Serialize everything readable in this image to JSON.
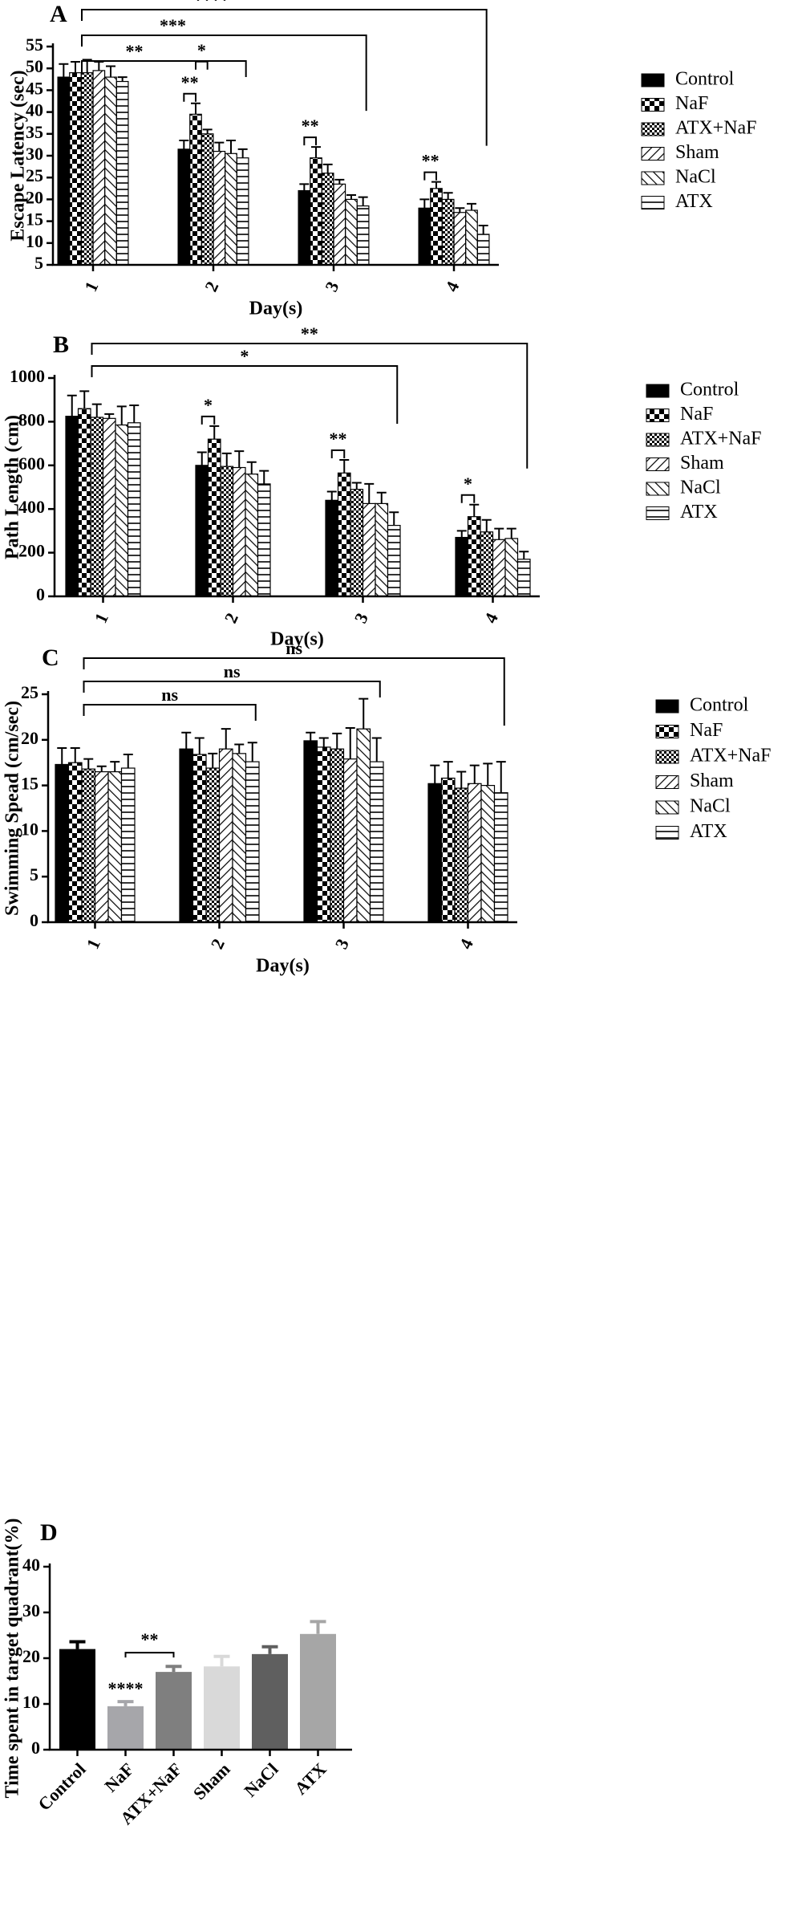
{
  "chart_data": [
    {
      "id": "A",
      "type": "bar",
      "panel_letter": "A",
      "xlabel": "Day(s)",
      "ylabel": "Escape Latency (sec)",
      "ylim": [
        5,
        55
      ],
      "yticks": [
        5,
        10,
        15,
        20,
        25,
        30,
        35,
        40,
        45,
        50,
        55
      ],
      "categories": [
        "1",
        "2",
        "3",
        "4"
      ],
      "legend_position": "right",
      "series": [
        {
          "name": "Control",
          "pattern": "solid",
          "values": [
            48,
            31.5,
            22,
            18
          ],
          "errors": [
            3,
            2,
            1.5,
            2
          ]
        },
        {
          "name": "NaF",
          "pattern": "checker",
          "values": [
            49,
            39.5,
            29.5,
            22.5
          ],
          "errors": [
            2.5,
            2.5,
            2.5,
            1.5
          ]
        },
        {
          "name": "ATX+NaF",
          "pattern": "finecheck",
          "values": [
            49,
            35,
            26,
            20
          ],
          "errors": [
            3,
            1,
            2,
            1.5
          ]
        },
        {
          "name": "Sham",
          "pattern": "diagback",
          "values": [
            49.5,
            31,
            23.5,
            17
          ],
          "errors": [
            2,
            2,
            1,
            1
          ]
        },
        {
          "name": "NaCl",
          "pattern": "diagfwd",
          "values": [
            48,
            30.5,
            20,
            17.5
          ],
          "errors": [
            2.5,
            3,
            1,
            1.5
          ]
        },
        {
          "name": "ATX",
          "pattern": "hlines",
          "values": [
            47,
            29.5,
            18.5,
            12
          ],
          "errors": [
            1,
            2,
            2,
            2
          ]
        }
      ],
      "group_brackets": [
        {
          "from": "1",
          "to": "2",
          "label": "**"
        },
        {
          "from": "1",
          "to": "3",
          "label": "***"
        },
        {
          "from": "1",
          "to": "4",
          "label": "****"
        }
      ],
      "pair_brackets": [
        {
          "category": "2",
          "a": "Control",
          "b": "NaF",
          "label": "**"
        },
        {
          "category": "2",
          "a": "NaF",
          "b": "ATX+NaF",
          "label": "*"
        },
        {
          "category": "3",
          "a": "Control",
          "b": "NaF",
          "label": "**"
        },
        {
          "category": "4",
          "a": "Control",
          "b": "NaF",
          "label": "**"
        }
      ]
    },
    {
      "id": "B",
      "type": "bar",
      "panel_letter": "B",
      "xlabel": "Day(s)",
      "ylabel": "Path Length (cm)",
      "ylim": [
        0,
        1000
      ],
      "yticks": [
        0,
        200,
        400,
        600,
        800,
        1000
      ],
      "categories": [
        "1",
        "2",
        "3",
        "4"
      ],
      "legend_position": "right",
      "series": [
        {
          "name": "Control",
          "pattern": "solid",
          "values": [
            825,
            600,
            440,
            270
          ],
          "errors": [
            95,
            60,
            40,
            30
          ]
        },
        {
          "name": "NaF",
          "pattern": "checker",
          "values": [
            860,
            720,
            565,
            365
          ],
          "errors": [
            80,
            60,
            60,
            55
          ]
        },
        {
          "name": "ATX+NaF",
          "pattern": "finecheck",
          "values": [
            820,
            595,
            490,
            295
          ],
          "errors": [
            60,
            60,
            30,
            55
          ]
        },
        {
          "name": "Sham",
          "pattern": "diagback",
          "values": [
            815,
            590,
            425,
            260
          ],
          "errors": [
            20,
            75,
            90,
            50
          ]
        },
        {
          "name": "NaCl",
          "pattern": "diagfwd",
          "values": [
            785,
            560,
            425,
            265
          ],
          "errors": [
            85,
            55,
            50,
            45
          ]
        },
        {
          "name": "ATX",
          "pattern": "hlines",
          "values": [
            795,
            515,
            325,
            170
          ],
          "errors": [
            80,
            60,
            60,
            35
          ]
        }
      ],
      "group_brackets": [
        {
          "from": "1",
          "to": "3",
          "label": "*"
        },
        {
          "from": "1",
          "to": "4",
          "label": "**"
        }
      ],
      "pair_brackets": [
        {
          "category": "2",
          "a": "Control",
          "b": "NaF",
          "label": "*"
        },
        {
          "category": "3",
          "a": "Control",
          "b": "NaF",
          "label": "**"
        },
        {
          "category": "4",
          "a": "Control",
          "b": "NaF",
          "label": "*"
        }
      ]
    },
    {
      "id": "C",
      "type": "bar",
      "panel_letter": "C",
      "xlabel": "Day(s)",
      "ylabel": "Swimming Spead (cm/sec)",
      "ylim": [
        0,
        25
      ],
      "yticks": [
        0,
        5,
        10,
        15,
        20,
        25
      ],
      "categories": [
        "1",
        "2",
        "3",
        "4"
      ],
      "legend_position": "right",
      "series": [
        {
          "name": "Control",
          "pattern": "solid",
          "values": [
            17.3,
            19,
            19.9,
            15.2
          ],
          "errors": [
            1.8,
            1.8,
            0.9,
            2
          ]
        },
        {
          "name": "NaF",
          "pattern": "checker",
          "values": [
            17.5,
            18.4,
            19.2,
            15.8
          ],
          "errors": [
            1.6,
            1.8,
            1,
            1.8
          ]
        },
        {
          "name": "ATX+NaF",
          "pattern": "finecheck",
          "values": [
            16.8,
            16.9,
            19,
            14.7
          ],
          "errors": [
            1.1,
            1.6,
            1.7,
            1.8
          ]
        },
        {
          "name": "Sham",
          "pattern": "diagback",
          "values": [
            16.5,
            19,
            17.9,
            15.2
          ],
          "errors": [
            0.6,
            2.2,
            3.4,
            2
          ]
        },
        {
          "name": "NaCl",
          "pattern": "diagfwd",
          "values": [
            16.5,
            18.5,
            21.2,
            15
          ],
          "errors": [
            1.1,
            1,
            3.3,
            2.4
          ]
        },
        {
          "name": "ATX",
          "pattern": "hlines",
          "values": [
            16.9,
            17.6,
            17.6,
            14.2
          ],
          "errors": [
            1.5,
            2.1,
            2.6,
            3.4
          ]
        }
      ],
      "group_brackets": [
        {
          "from": "1",
          "to": "2",
          "label": "ns"
        },
        {
          "from": "1",
          "to": "3",
          "label": "ns"
        },
        {
          "from": "1",
          "to": "4",
          "label": "ns"
        }
      ],
      "pair_brackets": []
    },
    {
      "id": "D",
      "type": "bar",
      "panel_letter": "D",
      "xlabel": "",
      "ylabel": "Time spent in target quadrant(%)",
      "ylim": [
        0,
        40
      ],
      "yticks": [
        0,
        10,
        20,
        30,
        40
      ],
      "categories": [
        "Control",
        "NaF",
        "ATX+NaF",
        "Sham",
        "NaCl",
        "ATX"
      ],
      "values": [
        22,
        9.5,
        17,
        18.2,
        20.9,
        25.3
      ],
      "errors": [
        1.6,
        1,
        1.2,
        2.2,
        1.6,
        2.7
      ],
      "colors": [
        "#000000",
        "#a6a6aa",
        "#7f7f7f",
        "#d9d9d9",
        "#5f5f5f",
        "#a6a6a6"
      ],
      "annotations": [
        {
          "category": "NaF",
          "label": "****"
        }
      ],
      "pair_brackets": [
        {
          "a": "NaF",
          "b": "ATX+NaF",
          "label": "**"
        }
      ]
    }
  ]
}
